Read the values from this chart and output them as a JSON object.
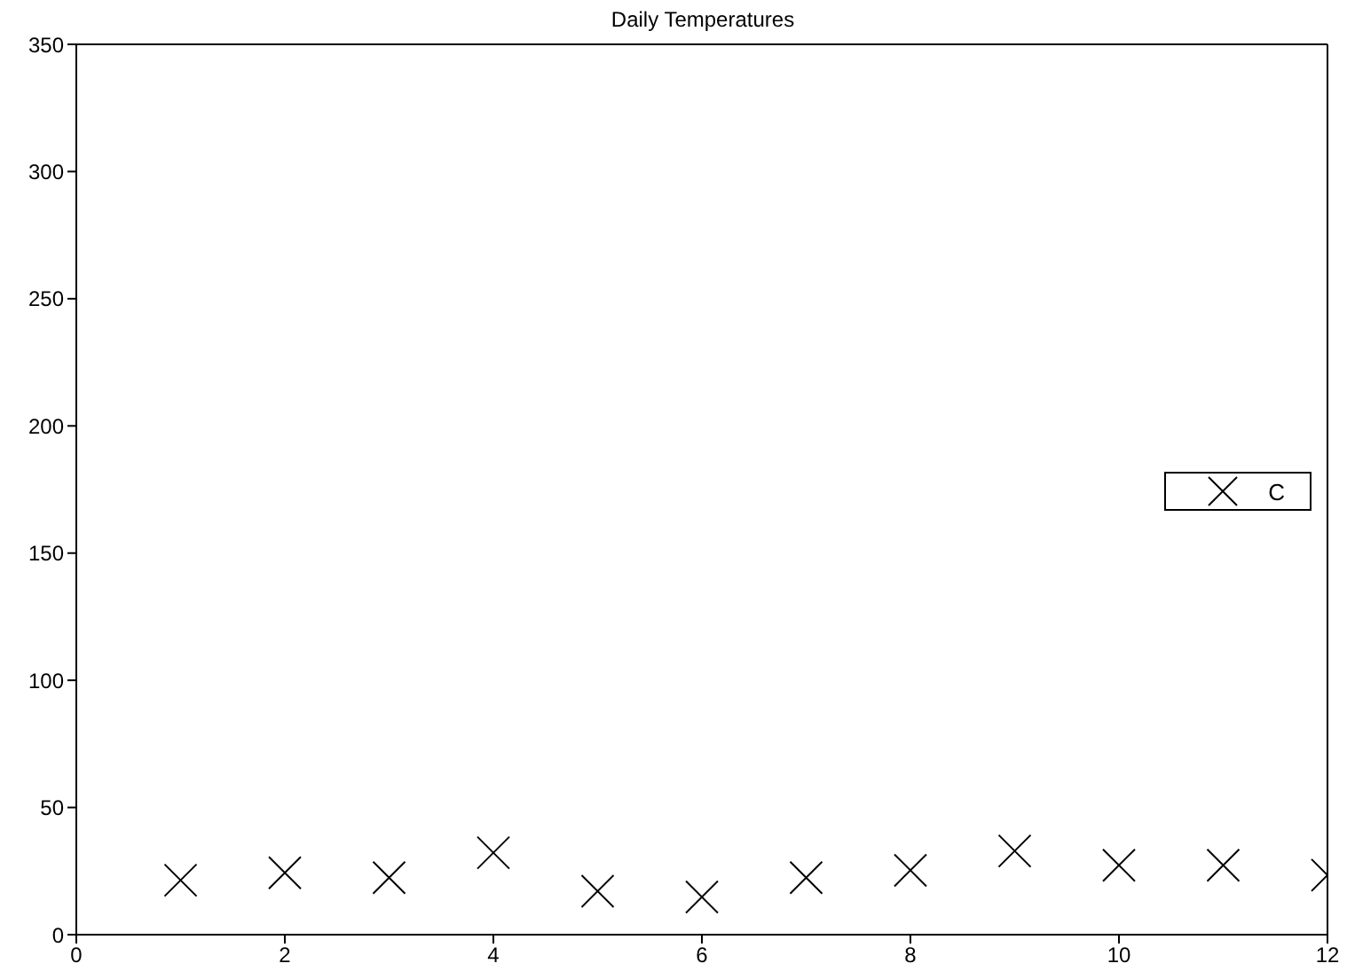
{
  "chart_data": {
    "type": "scatter",
    "title": "Daily Temperatures",
    "x": [
      1,
      2,
      3,
      4,
      5,
      6,
      7,
      8,
      9,
      10,
      11,
      12
    ],
    "series": [
      {
        "name": "C",
        "color": "#000000",
        "values": [
          21.4,
          24.3,
          22.4,
          32.2,
          17.1,
          14.8,
          22.4,
          25.3,
          32.9,
          27.3,
          27.3,
          23.4
        ]
      }
    ],
    "xlim": [
      0,
      12
    ],
    "xticks": [
      0,
      2,
      4,
      6,
      8,
      10,
      12
    ],
    "ylim": [
      0,
      350
    ],
    "yticks": [
      0,
      50,
      100,
      150,
      200,
      250,
      300,
      350
    ],
    "marker": "cross",
    "legend": "right"
  }
}
